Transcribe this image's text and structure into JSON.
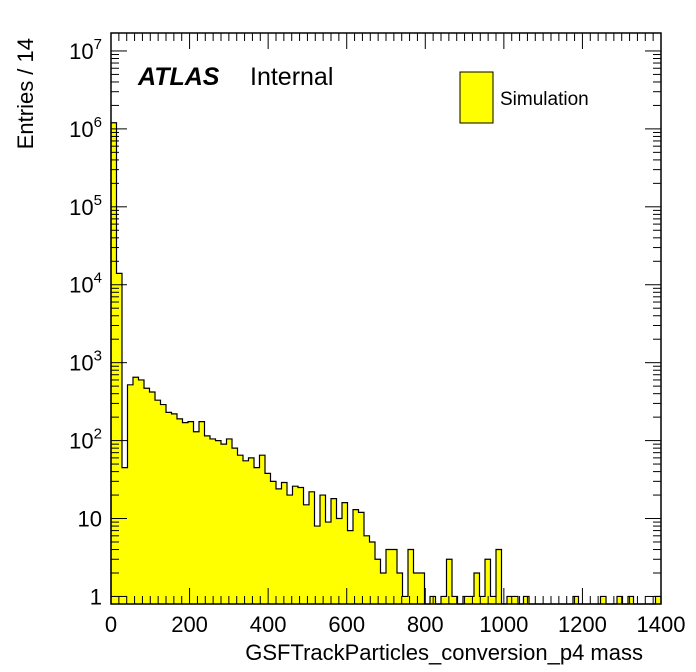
{
  "chart_data": {
    "type": "bar",
    "xlabel": "GSFTrackParticles_conversion_p4 mass",
    "ylabel": "Entries / 14",
    "xlim": [
      0,
      1400
    ],
    "ylim": [
      0.8,
      17000000
    ],
    "log_y": true,
    "bin_width": 14,
    "x_ticks": [
      "0",
      "200",
      "400",
      "600",
      "800",
      "1000",
      "1200",
      "1400"
    ],
    "y_ticks": [
      {
        "value": 1,
        "label": "1",
        "exp": ""
      },
      {
        "value": 10,
        "label": "10",
        "exp": ""
      },
      {
        "value": 100,
        "label": "10",
        "exp": "2"
      },
      {
        "value": 1000,
        "label": "10",
        "exp": "3"
      },
      {
        "value": 10000,
        "label": "10",
        "exp": "4"
      },
      {
        "value": 100000,
        "label": "10",
        "exp": "5"
      },
      {
        "value": 1000000,
        "label": "10",
        "exp": "6"
      },
      {
        "value": 10000000,
        "label": "10",
        "exp": "7"
      }
    ],
    "annotation": {
      "atlas": "ATLAS",
      "status": "Internal"
    },
    "legend": {
      "position": "top-right",
      "entries": [
        {
          "name": "Simulation",
          "color": "#ffff00"
        }
      ]
    },
    "fill_color": "#ffff00",
    "line_color": "#000000",
    "series": [
      {
        "name": "Simulation",
        "values": [
          1200000,
          14000,
          45,
          520,
          650,
          600,
          470,
          420,
          330,
          290,
          230,
          220,
          190,
          170,
          175,
          130,
          175,
          115,
          105,
          100,
          90,
          105,
          80,
          65,
          55,
          60,
          45,
          65,
          38,
          30,
          24,
          29,
          20,
          26,
          25,
          15,
          22,
          8,
          20,
          9,
          18,
          10,
          16,
          7,
          13,
          12,
          6,
          5,
          3,
          2,
          4,
          4,
          2,
          1,
          4,
          2,
          2,
          0,
          1,
          0,
          1,
          3,
          1,
          0,
          1,
          1,
          2,
          1,
          3,
          1,
          4,
          0,
          1,
          1,
          0,
          1,
          0,
          0,
          0,
          0,
          0,
          0,
          0,
          0,
          1,
          0,
          0,
          0,
          0,
          1,
          0,
          0,
          1,
          0,
          1,
          0,
          0,
          0,
          0,
          1
        ]
      }
    ]
  }
}
